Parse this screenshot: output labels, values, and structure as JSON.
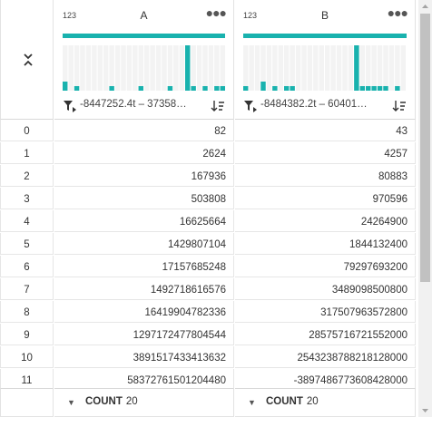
{
  "columns": [
    {
      "name": "A",
      "type": "123",
      "filter_range": "-8447252.4t – 37358…",
      "histogram": [
        0.2,
        0,
        0.1,
        0,
        0,
        0,
        0,
        0,
        0.1,
        0,
        0,
        0,
        0,
        0.1,
        0,
        0,
        0,
        0,
        0.1,
        0,
        0,
        1.0,
        0.1,
        0,
        0.1,
        0,
        0.1,
        0.1
      ]
    },
    {
      "name": "B",
      "type": "123",
      "filter_range": "-8484382.2t – 60401…",
      "histogram": [
        0.1,
        0,
        0,
        0.2,
        0,
        0.1,
        0,
        0.1,
        0.1,
        0,
        0,
        0,
        0,
        0,
        0,
        0,
        0,
        0,
        0,
        1.0,
        0.1,
        0.1,
        0.1,
        0.1,
        0.1,
        0,
        0.1,
        0
      ]
    }
  ],
  "rows": [
    {
      "index": "0",
      "a": "82",
      "b": "43"
    },
    {
      "index": "1",
      "a": "2624",
      "b": "4257"
    },
    {
      "index": "2",
      "a": "167936",
      "b": "80883"
    },
    {
      "index": "3",
      "a": "503808",
      "b": "970596"
    },
    {
      "index": "4",
      "a": "16625664",
      "b": "24264900"
    },
    {
      "index": "5",
      "a": "1429807104",
      "b": "1844132400"
    },
    {
      "index": "6",
      "a": "17157685248",
      "b": "79297693200"
    },
    {
      "index": "7",
      "a": "1492718616576",
      "b": "3489098500800"
    },
    {
      "index": "8",
      "a": "16419904782336",
      "b": "317507963572800"
    },
    {
      "index": "9",
      "a": "1297172477804544",
      "b": "28575716721552000"
    },
    {
      "index": "10",
      "a": "3891517433413632",
      "b": "2543238788218128000"
    },
    {
      "index": "11",
      "a": "58372761501204480",
      "b": "-3897486773608428000"
    }
  ],
  "footer": {
    "aggregate_label": "COUNT",
    "a_count": "20",
    "b_count": "20"
  },
  "colors": {
    "accent": "#19b2ae",
    "histogram_bg": "#ececec",
    "grid_line": "#e6e6e6"
  }
}
